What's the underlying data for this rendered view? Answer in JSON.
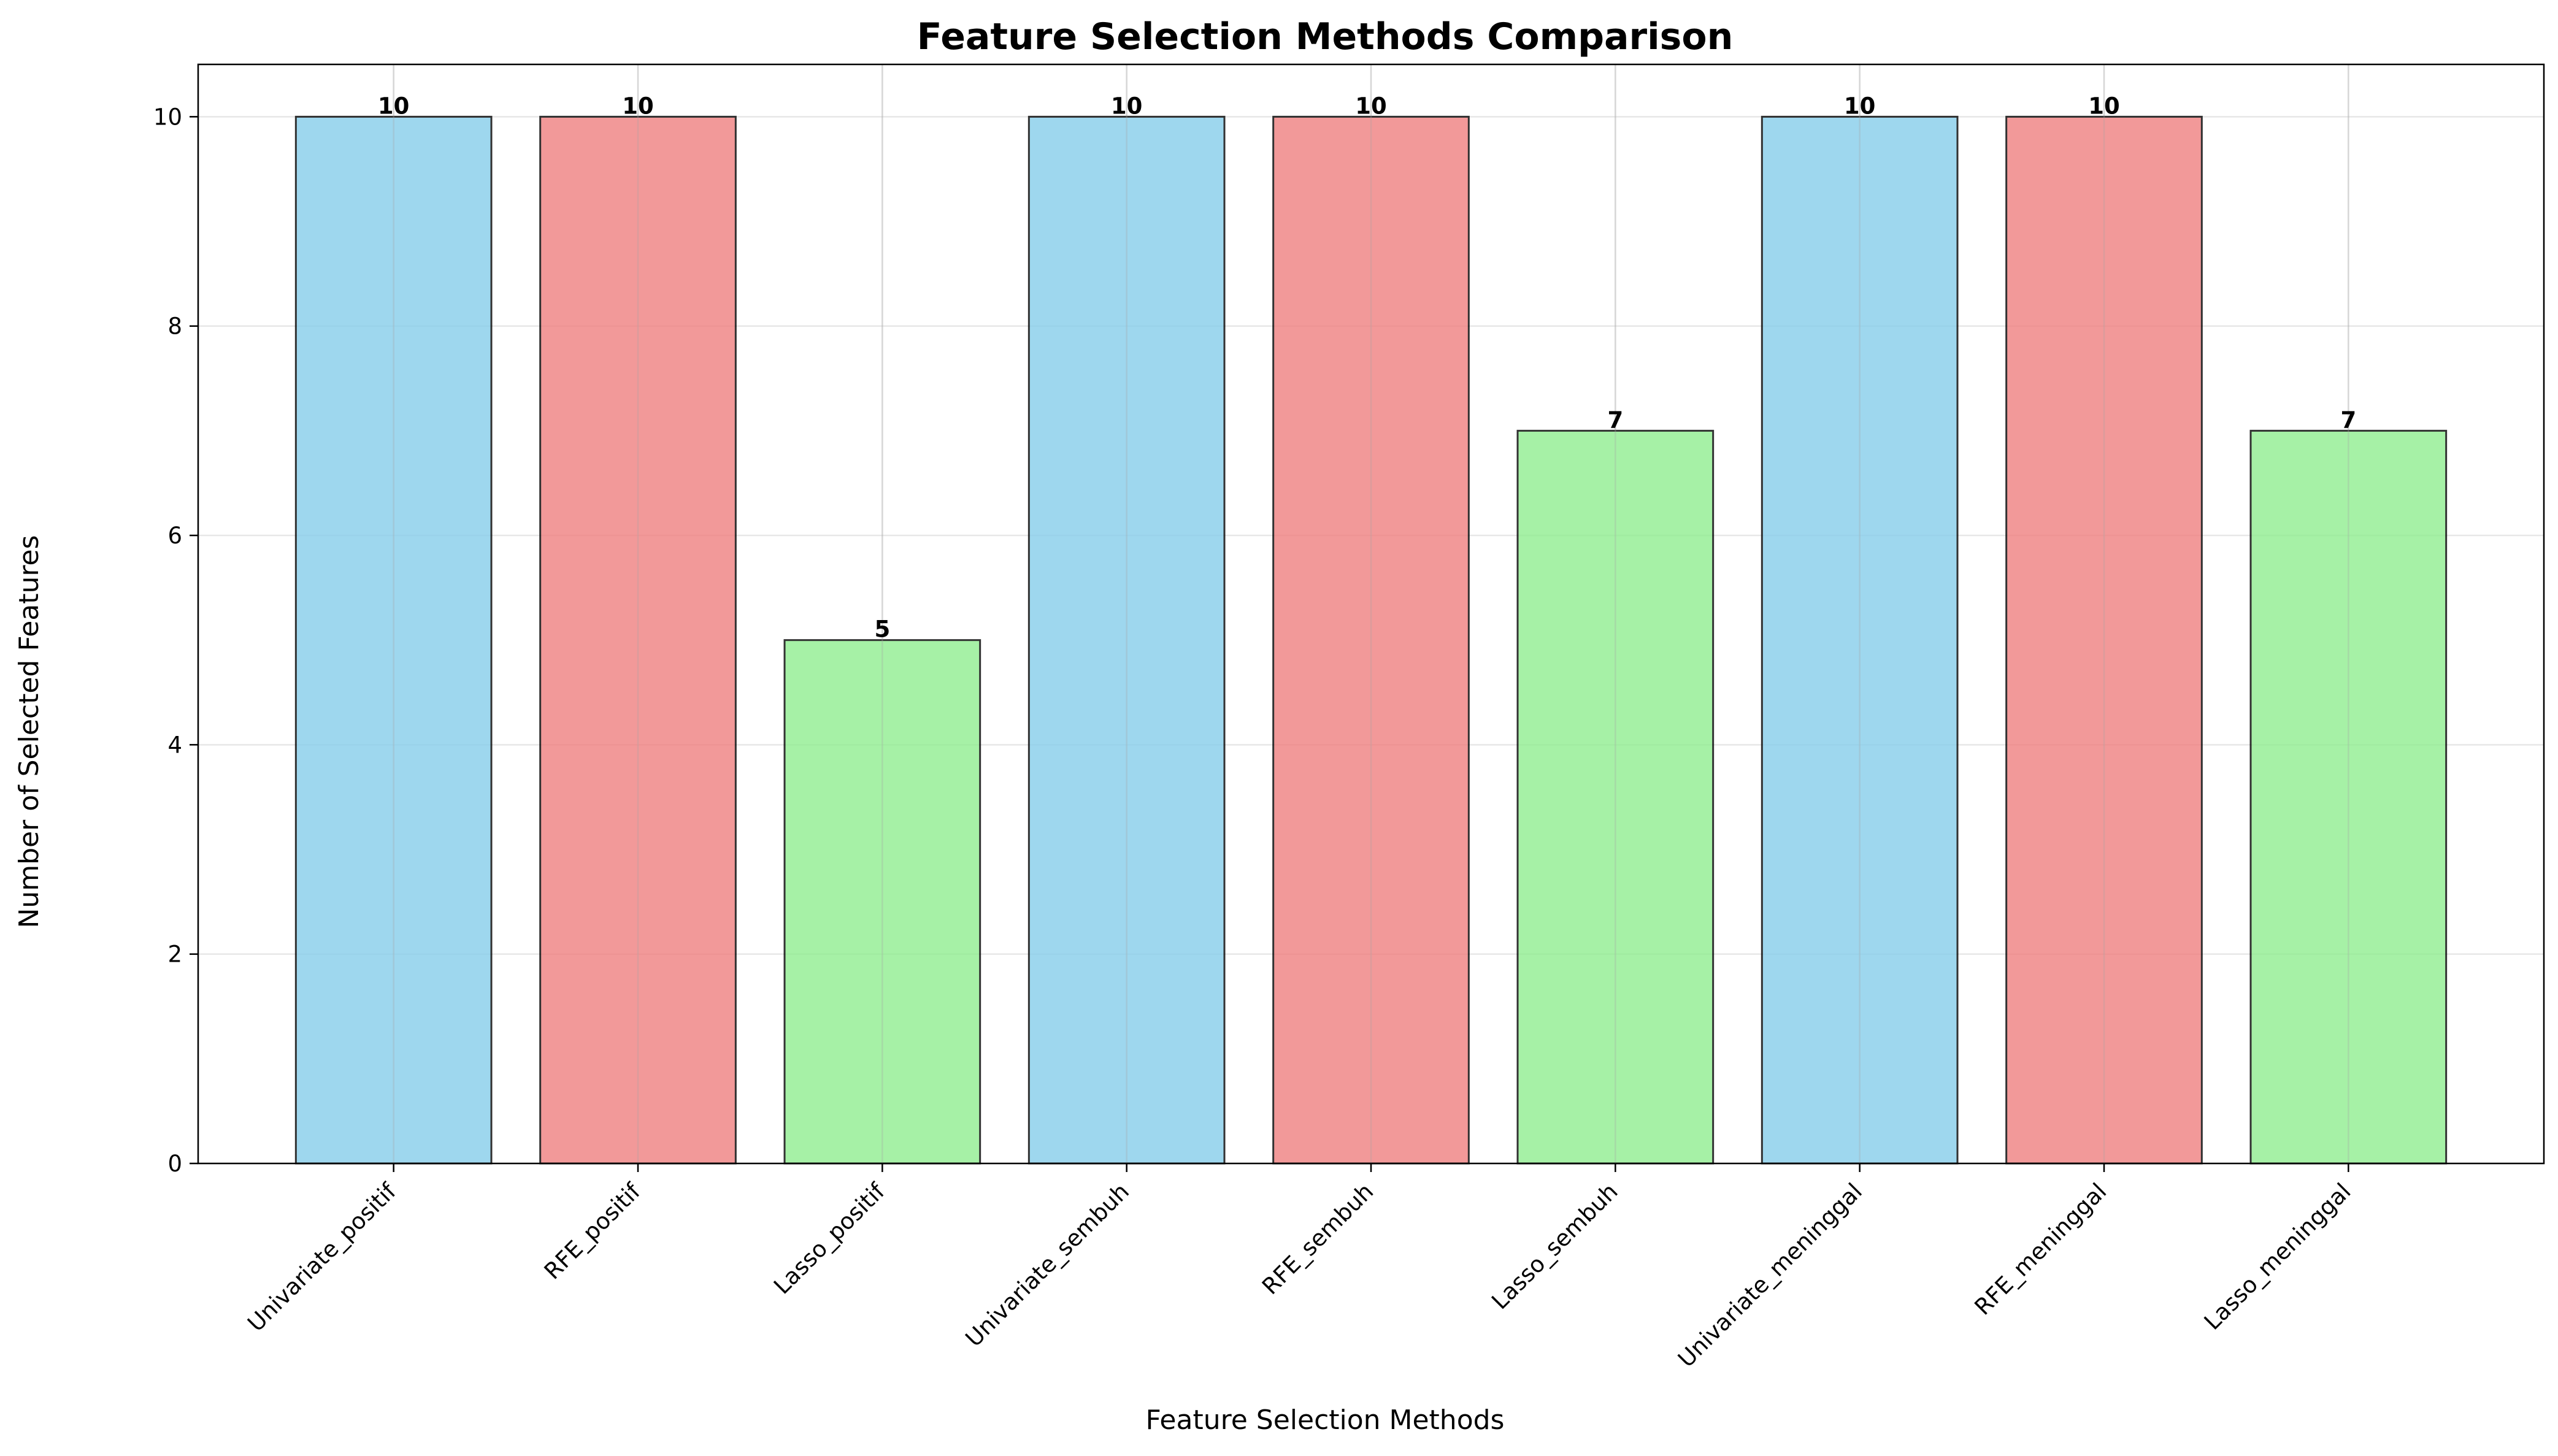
{
  "chart_data": {
    "type": "bar",
    "title": "Feature Selection Methods Comparison",
    "xlabel": "Feature Selection Methods",
    "ylabel": "Number of Selected Features",
    "categories": [
      "Univariate_positif",
      "RFE_positif",
      "Lasso_positif",
      "Univariate_sembuh",
      "RFE_sembuh",
      "Lasso_sembuh",
      "Univariate_meninggal",
      "RFE_meninggal",
      "Lasso_meninggal"
    ],
    "values": [
      10,
      10,
      5,
      10,
      10,
      7,
      10,
      10,
      7
    ],
    "bar_colors": [
      "#87ceeb",
      "#f08080",
      "#90ee90",
      "#87ceeb",
      "#f08080",
      "#90ee90",
      "#87ceeb",
      "#f08080",
      "#90ee90"
    ],
    "ylim": [
      0,
      10.5
    ],
    "yticks": [
      0,
      2,
      4,
      6,
      8,
      10
    ],
    "grid": true,
    "show_value_labels": true
  }
}
